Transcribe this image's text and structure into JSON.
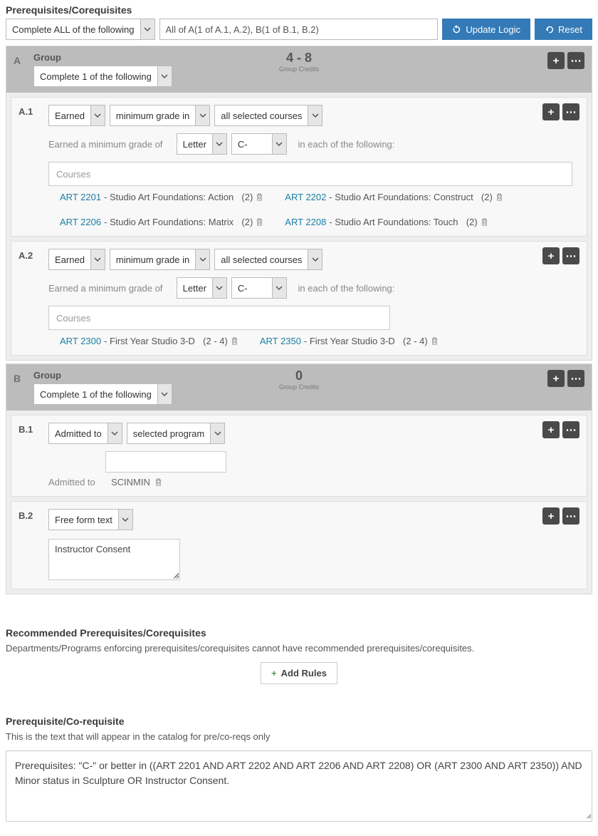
{
  "section": {
    "title": "Prerequisites/Corequisites"
  },
  "top": {
    "mainSelect": "Complete ALL of the following",
    "logic": "All of A(1 of A.1, A.2), B(1 of B.1, B.2)",
    "updateBtn": "Update Logic",
    "resetBtn": "Reset"
  },
  "groups": [
    {
      "id": "A",
      "label": "Group",
      "credits": "4 - 8",
      "creditsLabel": "Group Credits",
      "select": "Complete 1 of the following",
      "rules": [
        {
          "id": "A.1",
          "type": "grade",
          "sel1": "Earned",
          "sel2": "minimum grade in",
          "sel3": "all selected courses",
          "line2pre": "Earned a minimum grade of",
          "gradeType": "Letter",
          "gradeVal": "C-",
          "line2post": "in each of the following:",
          "coursesPlaceholder": "Courses",
          "coursesFull": true,
          "courses": [
            {
              "code": "ART 2201",
              "title": "Studio Art Foundations: Action",
              "credits": "(2)"
            },
            {
              "code": "ART 2202",
              "title": "Studio Art Foundations: Construct",
              "credits": "(2)"
            },
            {
              "code": "ART 2206",
              "title": "Studio Art Foundations: Matrix",
              "credits": "(2)"
            },
            {
              "code": "ART 2208",
              "title": "Studio Art Foundations: Touch",
              "credits": "(2)"
            }
          ]
        },
        {
          "id": "A.2",
          "type": "grade",
          "sel1": "Earned",
          "sel2": "minimum grade in",
          "sel3": "all selected courses",
          "line2pre": "Earned a minimum grade of",
          "gradeType": "Letter",
          "gradeVal": "C-",
          "line2post": "in each of the following:",
          "coursesPlaceholder": "Courses",
          "coursesFull": false,
          "courses": [
            {
              "code": "ART 2300",
              "title": "First Year Studio 3-D",
              "credits": "(2 - 4)"
            },
            {
              "code": "ART 2350",
              "title": "First Year Studio 3-D",
              "credits": "(2 - 4)"
            }
          ]
        }
      ]
    },
    {
      "id": "B",
      "label": "Group",
      "credits": "0",
      "creditsLabel": "Group Credits",
      "select": "Complete 1 of the following",
      "rules": [
        {
          "id": "B.1",
          "type": "admitted",
          "sel1": "Admitted to",
          "sel2": "selected program",
          "admittedLabel": "Admitted to",
          "admittedValue": "SCINMIN"
        },
        {
          "id": "B.2",
          "type": "freeform",
          "sel1": "Free form text",
          "text": "Instructor Consent"
        }
      ]
    }
  ],
  "recommended": {
    "title": "Recommended Prerequisites/Corequisites",
    "desc": "Departments/Programs enforcing prerequisites/corequisites cannot have recommended prerequisites/corequisites.",
    "addBtn": "Add Rules"
  },
  "catalog": {
    "title": "Prerequisite/Co-requisite",
    "desc": "This is the text that will appear in the catalog for pre/co-reqs only",
    "text": "Prerequisites: \"C-\" or better in ((ART 2201 AND ART 2202 AND ART 2206 AND ART 2208) OR (ART 2300 AND ART 2350)) AND Minor status in Sculpture OR Instructor Consent."
  },
  "colors": {
    "primary": "#337ab7",
    "link": "#1a7fa4",
    "iconBtn": "#4a4a4a",
    "headerBg": "#bcbcbc",
    "bodyBg": "#eee",
    "ruleBg": "#f8f8f8"
  }
}
